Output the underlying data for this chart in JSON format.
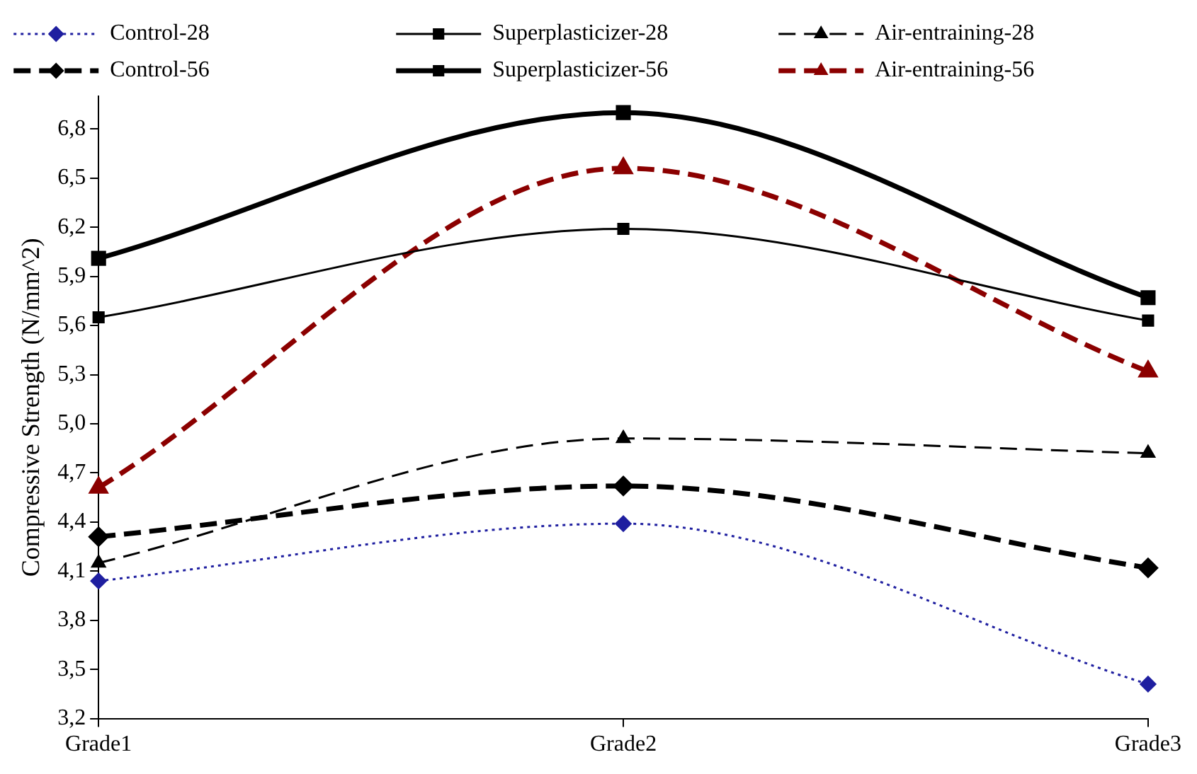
{
  "chart_data": {
    "type": "line",
    "ylabel": "Compressive Strength (N/mm^2)",
    "categories": [
      "Grade1",
      "Grade2",
      "Grade3"
    ],
    "ylim": [
      3.2,
      7.0
    ],
    "yticks": [
      {
        "value": 3.2,
        "label": "3,2"
      },
      {
        "value": 3.5,
        "label": "3,5"
      },
      {
        "value": 3.8,
        "label": "3,8"
      },
      {
        "value": 4.1,
        "label": "4,1"
      },
      {
        "value": 4.4,
        "label": "4,4"
      },
      {
        "value": 4.7,
        "label": "4,7"
      },
      {
        "value": 5.0,
        "label": "5,0"
      },
      {
        "value": 5.3,
        "label": "5,3"
      },
      {
        "value": 5.6,
        "label": "5,6"
      },
      {
        "value": 5.9,
        "label": "5,9"
      },
      {
        "value": 6.2,
        "label": "6,2"
      },
      {
        "value": 6.5,
        "label": "6,5"
      },
      {
        "value": 6.8,
        "label": "6,8"
      }
    ],
    "grid": false,
    "legend": "top",
    "series": [
      {
        "name": "Control-28",
        "color": "#1f1fa0",
        "values": [
          4.04,
          4.39,
          3.41
        ],
        "marker": "diamond",
        "line_style": "dotted"
      },
      {
        "name": "Superplasticizer-28",
        "color": "#000000",
        "values": [
          5.65,
          6.19,
          5.63
        ],
        "marker": "square",
        "line_style": "solid"
      },
      {
        "name": "Air-entraining-28",
        "color": "#000000",
        "values": [
          4.15,
          4.91,
          4.82
        ],
        "marker": "triangle",
        "line_style": "dashed"
      },
      {
        "name": "Control-56",
        "color": "#000000",
        "values": [
          4.31,
          4.62,
          4.12
        ],
        "marker": "diamond",
        "line_style": "dashed"
      },
      {
        "name": "Superplasticizer-56",
        "color": "#000000",
        "values": [
          6.01,
          6.9,
          5.77
        ],
        "marker": "square",
        "line_style": "solid"
      },
      {
        "name": "Air-entraining-56",
        "color": "#8b0000",
        "values": [
          4.61,
          6.56,
          5.32
        ],
        "marker": "triangle",
        "line_style": "dashed"
      }
    ]
  }
}
